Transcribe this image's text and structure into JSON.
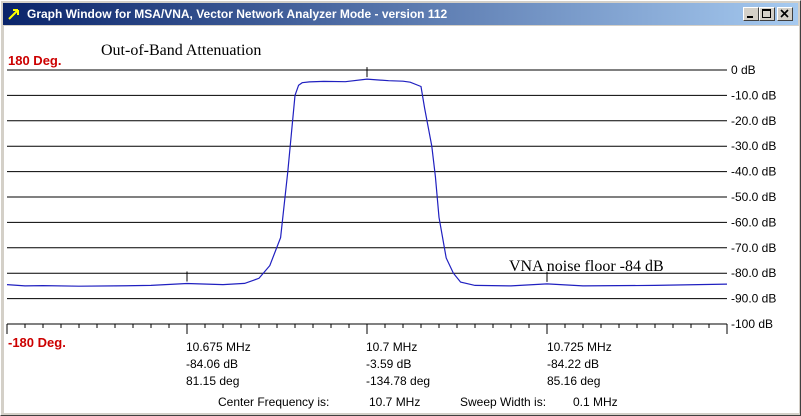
{
  "window": {
    "title": "Graph Window for MSA/VNA, Vector Network Analyzer Mode - version 112",
    "icon": "arrow-icon"
  },
  "chart_data": {
    "type": "line",
    "title": "Out-of-Band Attenuation",
    "annotation": "VNA noise floor -84 dB",
    "y_left_top": "180 Deg.",
    "y_left_bottom": "-180 Deg.",
    "yticks": [
      "0 dB",
      "-10.0 dB",
      "-20.0 dB",
      "-30.0 dB",
      "-40.0 dB",
      "-50.0 dB",
      "-60.0 dB",
      "-70.0 dB",
      "-80.0 dB",
      "-90.0 dB",
      "-100 dB"
    ],
    "ylim": [
      -100,
      0
    ],
    "xlim": [
      10.65,
      10.75
    ],
    "x_unit": "MHz",
    "grid": true,
    "series": [
      {
        "color": "#2020c0",
        "x": [
          10.65,
          10.6525,
          10.655,
          10.66,
          10.665,
          10.67,
          10.675,
          10.68,
          10.683,
          10.685,
          10.6865,
          10.688,
          10.689,
          10.6895,
          10.69,
          10.6905,
          10.691,
          10.692,
          10.694,
          10.697,
          10.7,
          10.703,
          10.705,
          10.706,
          10.7075,
          10.708,
          10.709,
          10.7095,
          10.71,
          10.7105,
          10.711,
          10.712,
          10.713,
          10.715,
          10.72,
          10.725,
          10.73,
          10.74,
          10.75
        ],
        "y": [
          -84.5,
          -85.0,
          -84.9,
          -85.1,
          -85.0,
          -84.8,
          -84.06,
          -84.5,
          -84.0,
          -82.0,
          -77.0,
          -66.0,
          -40.0,
          -25.0,
          -10.0,
          -6.0,
          -5.0,
          -4.7,
          -4.5,
          -4.6,
          -3.59,
          -4.2,
          -4.4,
          -4.8,
          -6.5,
          -15.0,
          -30.0,
          -42.0,
          -58.0,
          -66.0,
          -74.0,
          -80.0,
          -83.5,
          -84.8,
          -85.0,
          -84.22,
          -85.0,
          -84.8,
          -84.3
        ]
      }
    ],
    "markers": [
      {
        "freq": "10.675 MHz",
        "mag": "-84.06 dB",
        "phase": "81.15 deg",
        "x": 10.675,
        "y": -84.06
      },
      {
        "freq": "10.7 MHz",
        "mag": "-3.59 dB",
        "phase": "-134.78 deg",
        "x": 10.7,
        "y": -3.59
      },
      {
        "freq": "10.725 MHz",
        "mag": "-84.22 dB",
        "phase": "85.16 deg",
        "x": 10.725,
        "y": -84.22
      }
    ]
  },
  "footer": {
    "center_label": "Center Frequency is:",
    "center_value": "10.7 MHz",
    "sweep_label": "Sweep Width is:",
    "sweep_value": "0.1 MHz"
  }
}
